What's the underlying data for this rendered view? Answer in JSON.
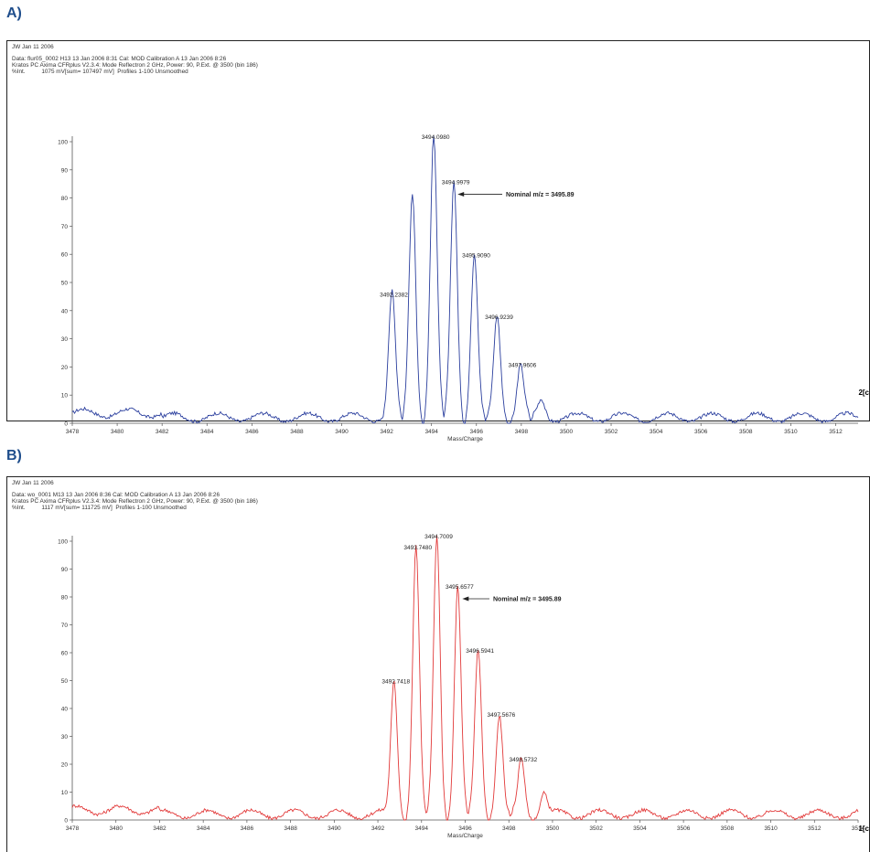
{
  "panels": [
    {
      "letter": "A)",
      "header": "JW Jan 11 2006",
      "meta": [
        "Data: flur05_0002 H13 13 Jan 2006 8:31 Cal: MOD Calibration A 13 Jan 2006 8:26",
        "Kratos PC Axima CFRplus V2.3.4: Mode Reflectron 2 GHz, Power: 90, P.Ext. @ 3500 (bin 186)",
        "%Int.          1075 mV[sum= 107497 mV]  Profiles 1-100 Unsmoothed"
      ],
      "annotation": "Nominal m/z = 3495.89",
      "corner_tag": "2[c",
      "color": "#2b3f9e"
    },
    {
      "letter": "B)",
      "header": "JW Jan 11 2006",
      "meta": [
        "Data: wo_0001 M13 13 Jan 2006 8:36 Cal: MOD Calibration A 13 Jan 2006 8:26",
        "Kratos PC Axima CFRplus V2.3.4: Mode Reflectron 2 GHz, Power: 90, P.Ext. @ 3500 (bin 186)",
        "%Int.          1117 mV[sum= 111725 mV]  Profiles 1-100 Unsmoothed"
      ],
      "annotation": "Nominal m/z = 3495.89",
      "corner_tag": "1[c",
      "color": "#e23a3a"
    }
  ],
  "chart_data": [
    {
      "type": "line",
      "xlabel": "Mass/Charge",
      "xlim": [
        3478,
        3513
      ],
      "xticks": [
        3478,
        3480,
        3482,
        3484,
        3486,
        3488,
        3490,
        3492,
        3494,
        3496,
        3498,
        3500,
        3502,
        3504,
        3506,
        3508,
        3510,
        3512
      ],
      "ylim": [
        0,
        100
      ],
      "yticks": [
        0,
        10,
        20,
        30,
        40,
        50,
        60,
        70,
        80,
        90,
        100
      ],
      "series": [
        {
          "color": "#2b3f9e",
          "peaks": [
            {
              "x": 3492.2382,
              "y": 44
            },
            {
              "x": 3493.15,
              "y": 80
            },
            {
              "x": 3494.098,
              "y": 100
            },
            {
              "x": 3494.9979,
              "y": 84
            },
            {
              "x": 3495.909,
              "y": 58
            },
            {
              "x": 3496.9239,
              "y": 36
            },
            {
              "x": 3497.9606,
              "y": 19
            },
            {
              "x": 3498.9,
              "y": 6
            }
          ]
        }
      ],
      "labels": [
        {
          "x": 3492.2382,
          "y": 44,
          "text": "3492.2382"
        },
        {
          "x": 3494.098,
          "y": 100,
          "text": "3494.0980"
        },
        {
          "x": 3494.9979,
          "y": 84,
          "text": "3494.9979"
        },
        {
          "x": 3495.909,
          "y": 58,
          "text": "3495.9090"
        },
        {
          "x": 3496.9239,
          "y": 36,
          "text": "3496.9239"
        },
        {
          "x": 3497.9606,
          "y": 19,
          "text": "3497.9606"
        }
      ],
      "arrow_target": {
        "x": 3495.0,
        "y": 82
      }
    },
    {
      "type": "line",
      "xlabel": "Mass/Charge",
      "xlim": [
        3478,
        3514
      ],
      "xticks": [
        3478,
        3480,
        3482,
        3484,
        3486,
        3488,
        3490,
        3492,
        3494,
        3496,
        3498,
        3500,
        3502,
        3504,
        3506,
        3508,
        3510,
        3512,
        3514
      ],
      "ylim": [
        0,
        100
      ],
      "yticks": [
        0,
        10,
        20,
        30,
        40,
        50,
        60,
        70,
        80,
        90,
        100
      ],
      "series": [
        {
          "color": "#e23a3a",
          "peaks": [
            {
              "x": 3492.7418,
              "y": 48
            },
            {
              "x": 3493.748,
              "y": 96
            },
            {
              "x": 3494.7009,
              "y": 100
            },
            {
              "x": 3495.6577,
              "y": 82
            },
            {
              "x": 3496.5941,
              "y": 59
            },
            {
              "x": 3497.5676,
              "y": 36
            },
            {
              "x": 3498.5732,
              "y": 20
            },
            {
              "x": 3499.6,
              "y": 8
            }
          ]
        }
      ],
      "labels": [
        {
          "x": 3492.7418,
          "y": 48,
          "text": "3492.7418"
        },
        {
          "x": 3493.748,
          "y": 96,
          "text": "3493.7480"
        },
        {
          "x": 3494.7009,
          "y": 100,
          "text": "3494.7009"
        },
        {
          "x": 3495.6577,
          "y": 82,
          "text": "3495.6577"
        },
        {
          "x": 3496.5941,
          "y": 59,
          "text": "3496.5941"
        },
        {
          "x": 3497.5676,
          "y": 36,
          "text": "3497.5676"
        },
        {
          "x": 3498.5732,
          "y": 20,
          "text": "3498.5732"
        }
      ],
      "arrow_target": {
        "x": 3495.7,
        "y": 80
      }
    }
  ]
}
